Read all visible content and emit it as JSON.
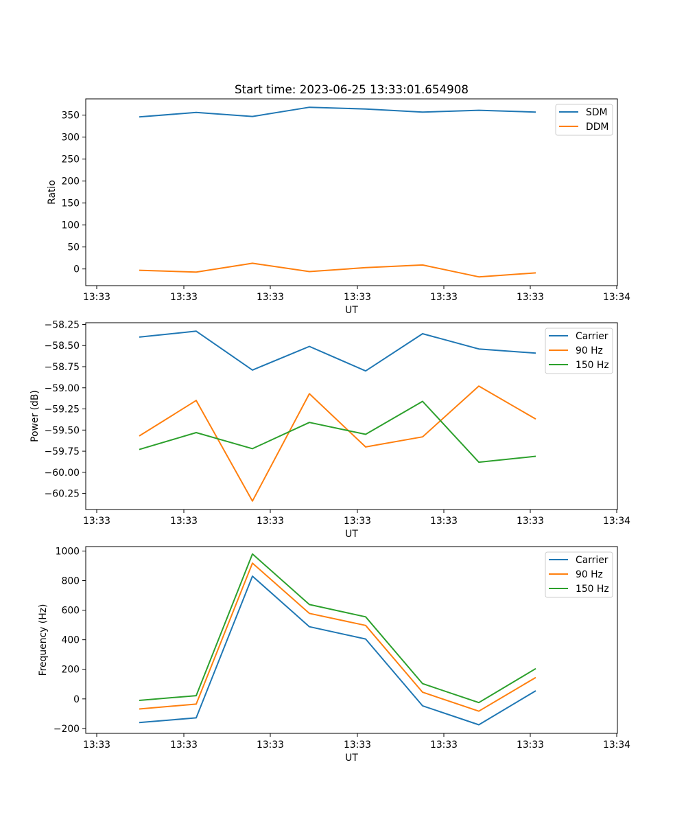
{
  "figure_title": "Start time: 2023-06-25 13:33:01.654908",
  "colors": {
    "blue": "#1f77b4",
    "orange": "#ff7f0e",
    "green": "#2ca02c"
  },
  "chart_data": [
    {
      "type": "line",
      "title": "Start time: 2023-06-25 13:33:01.654908",
      "xlabel": "UT",
      "ylabel": "Ratio",
      "x_tick_labels": [
        "13:33",
        "13:33",
        "13:33",
        "13:33",
        "13:33",
        "13:33",
        "13:34"
      ],
      "y_ticks": [
        0,
        50,
        100,
        150,
        200,
        250,
        300,
        350
      ],
      "y_tick_labels": [
        "0",
        "50",
        "100",
        "150",
        "200",
        "250",
        "300",
        "350"
      ],
      "ylim": [
        -38,
        387
      ],
      "x_index": [
        0,
        1,
        2,
        3,
        4,
        5,
        6,
        7
      ],
      "legend_position": "top-right",
      "series": [
        {
          "name": "SDM",
          "color": "#1f77b4",
          "values": [
            346,
            356,
            347,
            368,
            364,
            357,
            361,
            357
          ]
        },
        {
          "name": "DDM",
          "color": "#ff7f0e",
          "values": [
            -3,
            -7,
            13,
            -6,
            3,
            9,
            -18,
            -9
          ]
        }
      ]
    },
    {
      "type": "line",
      "xlabel": "UT",
      "ylabel": "Power (dB)",
      "x_tick_labels": [
        "13:33",
        "13:33",
        "13:33",
        "13:33",
        "13:33",
        "13:33",
        "13:34"
      ],
      "y_ticks": [
        -58.25,
        -58.5,
        -58.75,
        -59.0,
        -59.25,
        -59.5,
        -59.75,
        -60.0,
        -60.25
      ],
      "y_tick_labels": [
        "−58.25",
        "−58.50",
        "−58.75",
        "−59.00",
        "−59.25",
        "−59.50",
        "−59.75",
        "−60.00",
        "−60.25"
      ],
      "ylim": [
        -60.44,
        -58.23
      ],
      "x_index": [
        0,
        1,
        2,
        3,
        4,
        5,
        6,
        7
      ],
      "legend_position": "top-right",
      "series": [
        {
          "name": "Carrier",
          "color": "#1f77b4",
          "values": [
            -58.4,
            -58.33,
            -58.79,
            -58.51,
            -58.8,
            -58.36,
            -58.54,
            -58.59
          ]
        },
        {
          "name": "90 Hz",
          "color": "#ff7f0e",
          "values": [
            -59.57,
            -59.15,
            -60.34,
            -59.07,
            -59.7,
            -59.58,
            -58.98,
            -59.37
          ]
        },
        {
          "name": "150 Hz",
          "color": "#2ca02c",
          "values": [
            -59.73,
            -59.53,
            -59.72,
            -59.41,
            -59.55,
            -59.16,
            -59.88,
            -59.81
          ]
        }
      ]
    },
    {
      "type": "line",
      "xlabel": "UT",
      "ylabel": "Frequency (Hz)",
      "x_tick_labels": [
        "13:33",
        "13:33",
        "13:33",
        "13:33",
        "13:33",
        "13:33",
        "13:34"
      ],
      "y_ticks": [
        -200,
        0,
        200,
        400,
        600,
        800,
        1000
      ],
      "y_tick_labels": [
        "−200",
        "0",
        "200",
        "400",
        "600",
        "800",
        "1000"
      ],
      "ylim": [
        -233,
        1030
      ],
      "x_index": [
        0,
        1,
        2,
        3,
        4,
        5,
        6,
        7
      ],
      "legend_position": "top-right",
      "series": [
        {
          "name": "Carrier",
          "color": "#1f77b4",
          "values": [
            -160,
            -128,
            830,
            488,
            405,
            -47,
            -175,
            55
          ]
        },
        {
          "name": "90 Hz",
          "color": "#ff7f0e",
          "values": [
            -68,
            -35,
            918,
            578,
            497,
            45,
            -83,
            145
          ]
        },
        {
          "name": "150 Hz",
          "color": "#2ca02c",
          "values": [
            -10,
            22,
            980,
            638,
            555,
            103,
            -25,
            205
          ]
        }
      ]
    }
  ]
}
